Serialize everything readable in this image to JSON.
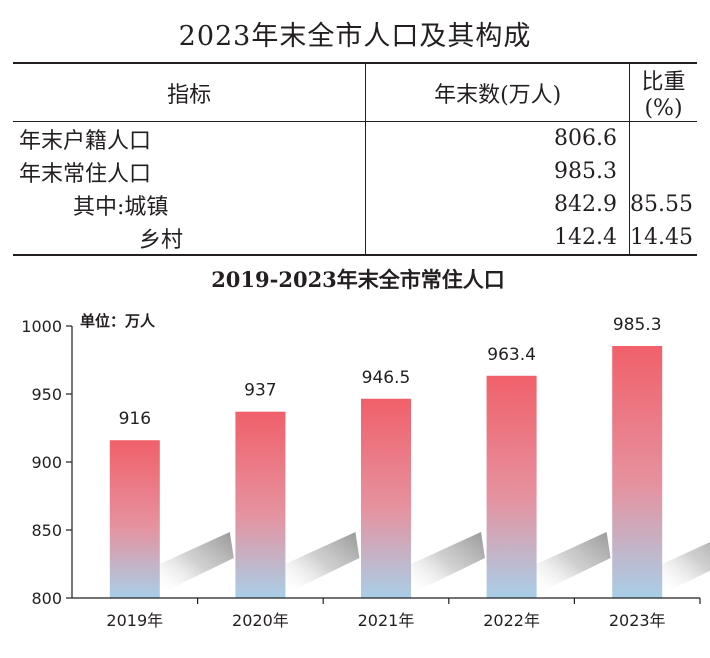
{
  "table": {
    "title": "2023年末全市人口及其构成",
    "headers": [
      "指标",
      "年末数(万人)",
      "比重(%)"
    ],
    "rows": [
      {
        "label": "年末户籍人口",
        "value": "806.6",
        "share": ""
      },
      {
        "label": "年末常住人口",
        "value": "985.3",
        "share": ""
      },
      {
        "label": "其中:城镇",
        "value": "842.9",
        "share": "85.55"
      },
      {
        "label": "乡村",
        "value": "142.4",
        "share": "14.45"
      }
    ]
  },
  "chart_data": {
    "type": "bar",
    "title": "2019-2023年末全市常住人口",
    "unit_label": "单位：万人",
    "categories": [
      "2019年",
      "2020年",
      "2021年",
      "2022年",
      "2023年"
    ],
    "values": [
      916,
      937,
      946.5,
      963.4,
      985.3
    ],
    "value_labels": [
      "916",
      "937",
      "946.5",
      "963.4",
      "985.3"
    ],
    "ylim": [
      800,
      1000
    ],
    "yticks": [
      800,
      850,
      900,
      950,
      1000
    ],
    "grid": false,
    "colors": {
      "bar_top": "#f0606a",
      "bar_bottom": "#a8cfe8",
      "axis": "#231f20"
    }
  }
}
